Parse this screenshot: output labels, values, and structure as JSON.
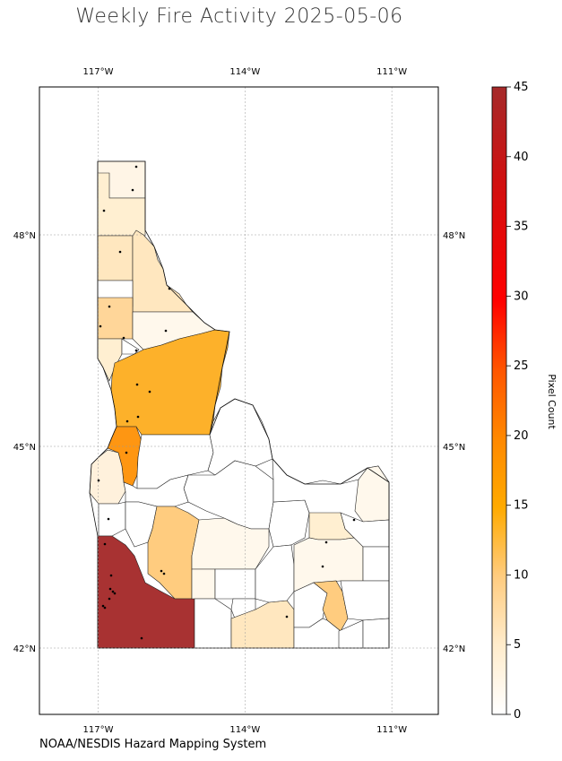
{
  "title": "Weekly Fire Activity 2025-05-06",
  "credit": "NOAA/NESDIS Hazard Mapping System",
  "map": {
    "lon_ticks": [
      {
        "value": -117,
        "label": "117°W"
      },
      {
        "value": -114,
        "label": "114°W"
      },
      {
        "value": -111,
        "label": "111°W"
      }
    ],
    "lat_ticks": [
      {
        "value": 48,
        "label": "48°N"
      },
      {
        "value": 45,
        "label": "45°N"
      },
      {
        "value": 42,
        "label": "42°N"
      }
    ],
    "extent": {
      "lon_min": -118.2,
      "lon_max": -110.05,
      "lat_min": 41.05,
      "lat_max": 49.9
    },
    "fill_colors": {
      "none": "#ffffff",
      "very_low": "#fff8e8",
      "low": "#ffefd1",
      "low_mid": "#ffe7bf",
      "mid": "#ffcc7f",
      "mid_high": "#fdb12a",
      "high": "#fe9612",
      "max": "#a83232"
    }
  },
  "colorbar": {
    "label": "Pixel Count",
    "min": 0,
    "max": 45,
    "ticks": [
      {
        "value": 0,
        "label": "0"
      },
      {
        "value": 5,
        "label": "5"
      },
      {
        "value": 10,
        "label": "10"
      },
      {
        "value": 15,
        "label": "15"
      },
      {
        "value": 20,
        "label": "20"
      },
      {
        "value": 25,
        "label": "25"
      },
      {
        "value": 30,
        "label": "30"
      },
      {
        "value": 35,
        "label": "35"
      },
      {
        "value": 40,
        "label": "40"
      },
      {
        "value": 45,
        "label": "45"
      }
    ]
  }
}
